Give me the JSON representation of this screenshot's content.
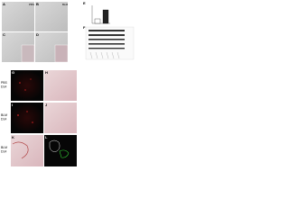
{
  "panels": [
    "A",
    "B",
    "C",
    "D",
    "E",
    "F",
    "G",
    "H",
    "I",
    "J",
    "K",
    "L"
  ],
  "row_labels": [
    [
      "PBS",
      "D14"
    ],
    [
      "BLM",
      "D14"
    ],
    [
      "BLM",
      "D14"
    ]
  ],
  "inset_labels": [
    "PBS",
    "BLM"
  ],
  "bar_panel": {
    "values": [
      1,
      3
    ],
    "ylim": [
      0,
      4
    ]
  }
}
